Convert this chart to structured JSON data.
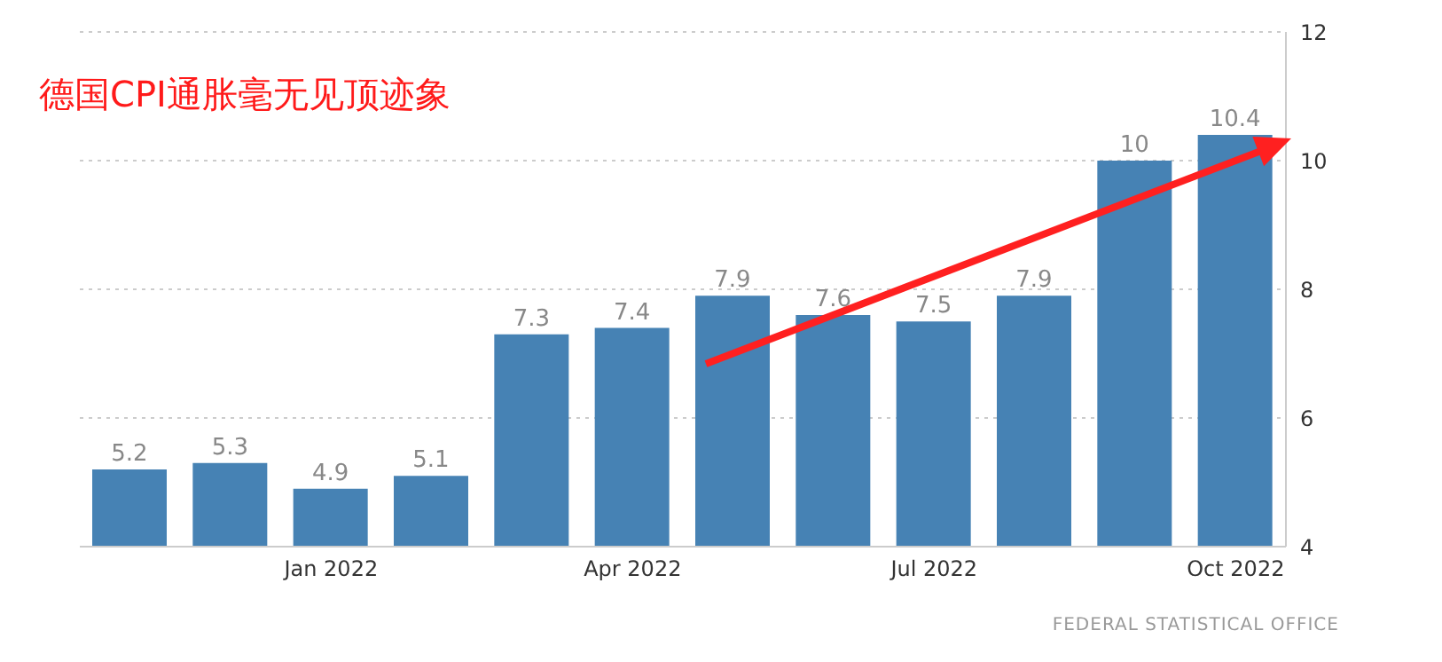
{
  "chart_data": {
    "type": "bar",
    "title": "德国CPI通胀毫无见顶迹象",
    "categories": [
      null,
      null,
      "Jan 2022",
      null,
      null,
      "Apr 2022",
      null,
      null,
      "Jul 2022",
      null,
      null,
      "Oct 2022"
    ],
    "values": [
      5.2,
      5.3,
      4.9,
      5.1,
      7.3,
      7.4,
      7.9,
      7.6,
      7.5,
      7.9,
      10,
      10.4
    ],
    "color": "#4682b4",
    "ylim": [
      4,
      12
    ],
    "yticks": [
      4,
      6,
      8,
      10,
      12
    ],
    "grid": "y",
    "data_labels": true,
    "annotations": [
      "FEDERAL STATISTICAL OFFICE"
    ]
  }
}
